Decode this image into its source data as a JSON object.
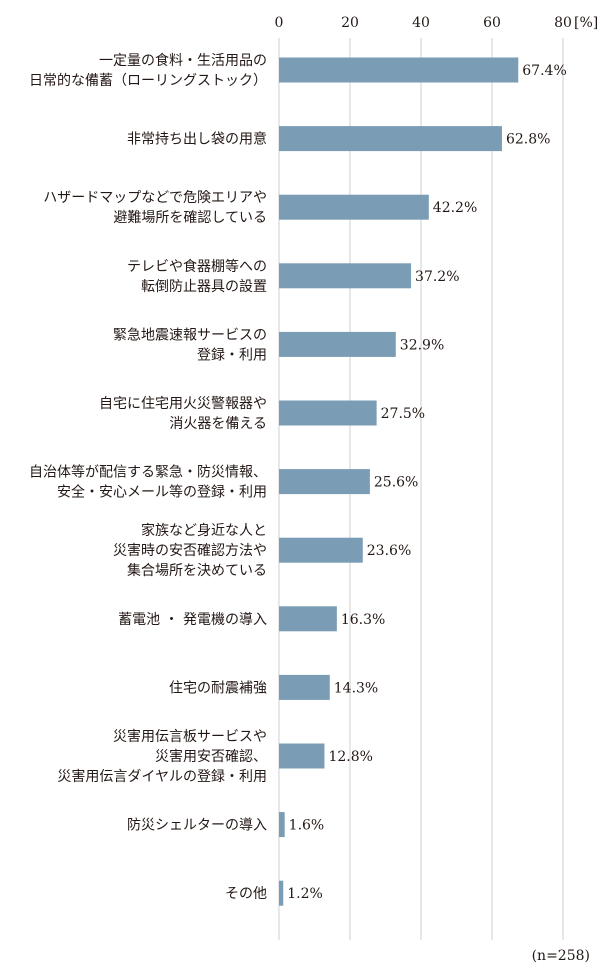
{
  "chart_data": {
    "type": "bar",
    "orientation": "horizontal",
    "unit_label": "[%]",
    "xlim": [
      0,
      80
    ],
    "xticks": [
      0,
      20,
      40,
      60,
      80
    ],
    "grid": true,
    "bar_color": "#7a9db5",
    "grid_color": "#cfcfcf",
    "categories": [
      [
        "一定量の食料・生活用品の",
        "日常的な備蓄（ローリングストック）"
      ],
      [
        "非常持ち出し袋の用意"
      ],
      [
        "ハザードマップなどで危険エリアや",
        "避難場所を確認している"
      ],
      [
        "テレビや食器棚等への",
        "転倒防止器具の設置"
      ],
      [
        "緊急地震速報サービスの",
        "登録・利用"
      ],
      [
        "自宅に住宅用火災警報器や",
        "消火器を備える"
      ],
      [
        "自治体等が配信する緊急・防災情報、",
        "安全・安心メール等の登録・利用"
      ],
      [
        "家族など身近な人と",
        "災害時の安否確認方法や",
        "集合場所を決めている"
      ],
      [
        "蓄電池 ・ 発電機の導入"
      ],
      [
        "住宅の耐震補強"
      ],
      [
        "災害用伝言板サービスや",
        "災害用安否確認、",
        "災害用伝言ダイヤルの登録・利用"
      ],
      [
        "防災シェルターの導入"
      ],
      [
        "その他"
      ]
    ],
    "values": [
      67.4,
      62.8,
      42.2,
      37.2,
      32.9,
      27.5,
      25.6,
      23.6,
      16.3,
      14.3,
      12.8,
      1.6,
      1.2
    ],
    "value_labels": [
      "67.4%",
      "62.8%",
      "42.2%",
      "37.2%",
      "32.9%",
      "27.5%",
      "25.6%",
      "23.6%",
      "16.3%",
      "14.3%",
      "12.8%",
      "1.6%",
      "1.2%"
    ]
  },
  "note": "(n=258)"
}
